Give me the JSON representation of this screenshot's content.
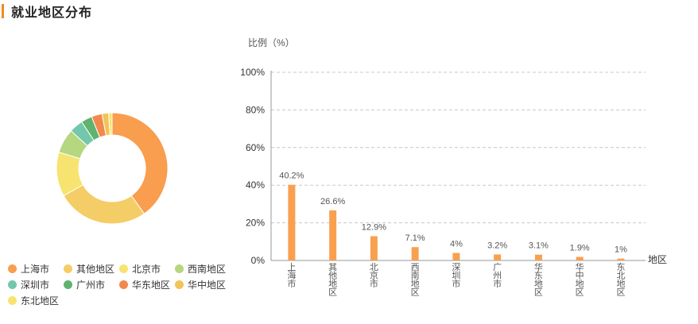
{
  "page": {
    "title": "就业地区分布"
  },
  "colors": {
    "accent": "#f08a24",
    "bar": "#f9a04f"
  },
  "chart_data": [
    {
      "type": "pie",
      "categories": [
        "上海市",
        "其他地区",
        "北京市",
        "西南地区",
        "深圳市",
        "广州市",
        "华东地区",
        "华中地区",
        "东北地区"
      ],
      "values": [
        40.2,
        26.6,
        12.9,
        7.1,
        4,
        3.2,
        3.1,
        1.9,
        1
      ],
      "colors": [
        "#f99d4e",
        "#f5cd66",
        "#f7e36f",
        "#b4d77f",
        "#73c7ab",
        "#5fb36e",
        "#f2894c",
        "#f1c456",
        "#f7e36f"
      ],
      "legend": "bottom-left"
    },
    {
      "type": "bar",
      "categories": [
        "上海市",
        "其他地区",
        "北京市",
        "西南地区",
        "深圳市",
        "广州市",
        "华东地区",
        "华中地区",
        "东北地区"
      ],
      "values": [
        40.2,
        26.6,
        12.9,
        7.1,
        4,
        3.2,
        3.1,
        1.9,
        1
      ],
      "data_labels": [
        "40.2%",
        "26.6%",
        "12.9%",
        "7.1%",
        "4%",
        "3.2%",
        "3.1%",
        "1.9%",
        "1%"
      ],
      "ylabel": "比例（%）",
      "xlabel": "地区",
      "yticks": [
        "0%",
        "20%",
        "40%",
        "60%",
        "80%",
        "100%"
      ],
      "ylim": [
        0,
        100
      ],
      "grid": true
    }
  ]
}
